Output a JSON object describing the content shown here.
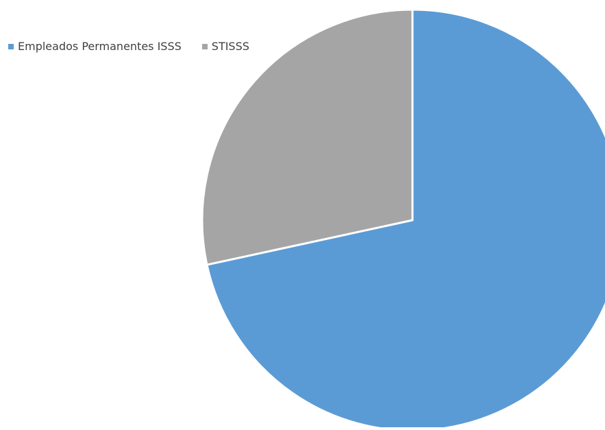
{
  "chart_data": {
    "type": "pie",
    "title": "",
    "categories": [
      "Empleados Permanentes ISSS",
      "STISSS"
    ],
    "values": [
      71.6,
      28.4
    ],
    "colors": [
      "#5b9bd5",
      "#a5a5a5"
    ],
    "legend_position": "top-left",
    "slice_border_color": "#ffffff"
  }
}
